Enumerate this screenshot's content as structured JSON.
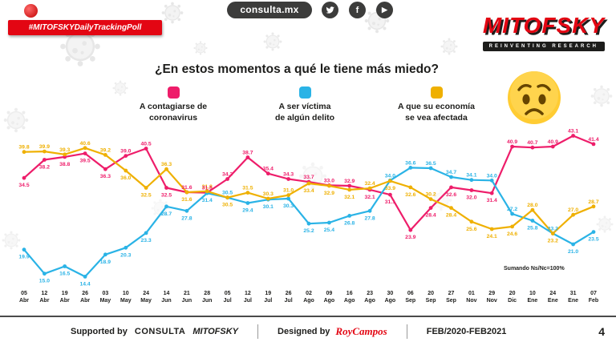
{
  "header": {
    "badge": "#MITOFSKYDailyTrackingPoll",
    "site": "consulta.mx",
    "social": [
      "twitter",
      "facebook",
      "youtube"
    ],
    "brand": "MITOFSKY",
    "brand_tagline": "REINVENTING RESEARCH"
  },
  "title": "¿En estos momentos a qué le tiene más miedo?",
  "legend": [
    {
      "lines": [
        "A contagiarse de",
        "coronavirus"
      ],
      "color": "#ee1d6a"
    },
    {
      "lines": [
        "A ser víctima",
        "de algún delito"
      ],
      "color": "#2ab3e6"
    },
    {
      "lines": [
        "A que su economía",
        "se vea afectada"
      ],
      "color": "#efb000"
    }
  ],
  "note": "Sumando Ns/Nc=100%",
  "chart_data": {
    "type": "line",
    "title": "¿En estos momentos a qué le tiene más miedo?",
    "categories": [
      "05 Abr",
      "12 Abr",
      "19 Abr",
      "26 Abr",
      "03 May",
      "10 May",
      "24 May",
      "14 Jun",
      "21 Jun",
      "28 Jun",
      "05 Jul",
      "12 Jul",
      "19 Jul",
      "26 Jul",
      "02 Ago",
      "09 Ago",
      "16 Ago",
      "23 Ago",
      "30 Ago",
      "06 Sep",
      "20 Sep",
      "27 Sep",
      "01 Nov",
      "29 Nov",
      "20 Dic",
      "10 Ene",
      "24 Ene",
      "31 Ene",
      "07 Feb"
    ],
    "series": [
      {
        "name": "A contagiarse de coronavirus",
        "color": "#ee1d6a",
        "values": [
          34.5,
          38.2,
          38.8,
          39.5,
          36.3,
          39.0,
          40.5,
          32.5,
          31.6,
          31.5,
          34.3,
          38.7,
          35.4,
          34.3,
          33.7,
          33.0,
          32.9,
          32.1,
          31.1,
          23.9,
          28.4,
          32.6,
          32.0,
          31.4,
          40.9,
          40.7,
          40.9,
          43.1,
          41.4
        ]
      },
      {
        "name": "A ser víctima de algún delito",
        "color": "#2ab3e6",
        "values": [
          19.9,
          15.0,
          16.5,
          14.4,
          18.9,
          20.3,
          23.3,
          28.7,
          27.8,
          31.4,
          30.5,
          29.4,
          30.1,
          30.3,
          25.2,
          25.4,
          26.8,
          27.8,
          34.0,
          36.6,
          36.5,
          34.7,
          34.1,
          34.0,
          27.2,
          25.8,
          23.2,
          21.0,
          23.5
        ]
      },
      {
        "name": "A que su economía se vea afectada",
        "color": "#efb000",
        "values": [
          39.8,
          39.9,
          39.3,
          40.6,
          39.2,
          36.0,
          32.5,
          36.3,
          31.6,
          31.8,
          30.5,
          31.5,
          30.3,
          31.0,
          33.4,
          32.9,
          32.1,
          32.4,
          33.9,
          32.6,
          30.2,
          28.4,
          25.6,
          24.1,
          24.6,
          28.0,
          23.2,
          27.0,
          28.7
        ]
      }
    ],
    "ylim": [
      13,
      44
    ],
    "grid": false,
    "legend_position": "top",
    "annotation": "Sumando Ns/Nc=100%"
  },
  "footer": {
    "supported_by": "Supported by",
    "consulta": "CONSULTA",
    "mitofsky": "MITOFSKY",
    "designed_by": "Designed by",
    "designer": "RoyCampos",
    "period": "FEB/2020-FEB2021",
    "page": "4"
  },
  "colors": {
    "pink": "#ee1d6a",
    "blue": "#2ab3e6",
    "yellow": "#efb000",
    "brand_red": "#e30613",
    "dark": "#1d1d1b"
  }
}
